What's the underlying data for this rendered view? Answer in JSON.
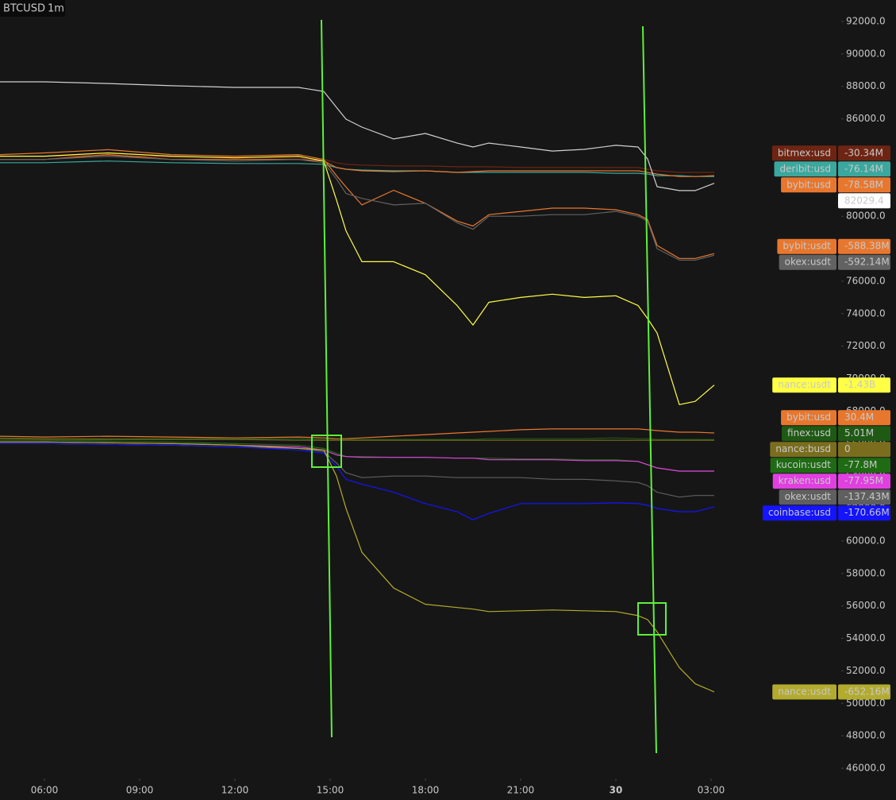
{
  "chart_data": {
    "type": "line",
    "title": "BTCUSD",
    "interval": "1m",
    "background": "#161616",
    "x": [
      4.6,
      6,
      8,
      10,
      12,
      14,
      14.8,
      15.2,
      15.5,
      16,
      17,
      18,
      19,
      19.5,
      20,
      21,
      22,
      23,
      24,
      24.7,
      25,
      25.3,
      26,
      26.5,
      27.1
    ],
    "xlim": [
      4.6,
      31.1
    ],
    "xticks": [
      {
        "value": 6,
        "label": "06:00"
      },
      {
        "value": 9,
        "label": "09:00"
      },
      {
        "value": 12,
        "label": "12:00"
      },
      {
        "value": 15,
        "label": "15:00"
      },
      {
        "value": 18,
        "label": "18:00"
      },
      {
        "value": 21,
        "label": "21:00"
      },
      {
        "value": 24,
        "label": "30",
        "bold": true
      },
      {
        "value": 27,
        "label": "03:00"
      }
    ],
    "ylim": [
      46000,
      92000
    ],
    "yticks": [
      {
        "value": 46000,
        "label": "46000.0"
      },
      {
        "value": 48000,
        "label": "48000.0"
      },
      {
        "value": 50000,
        "label": "50000.0"
      },
      {
        "value": 52000,
        "label": "52000.0"
      },
      {
        "value": 54000,
        "label": "54000.0"
      },
      {
        "value": 56000,
        "label": "56000.0"
      },
      {
        "value": 58000,
        "label": "58000.0"
      },
      {
        "value": 60000,
        "label": "60000.0"
      },
      {
        "value": 62000,
        "label": "62000.0"
      },
      {
        "value": 64000,
        "label": "64000.0"
      },
      {
        "value": 66000,
        "label": "66000.0"
      },
      {
        "value": 68000,
        "label": "68000.0"
      },
      {
        "value": 70000,
        "label": "70000.0"
      },
      {
        "value": 72000,
        "label": "72000.0"
      },
      {
        "value": 74000,
        "label": "74000.0"
      },
      {
        "value": 76000,
        "label": "76000.0"
      },
      {
        "value": 78000,
        "label": "78000.0"
      },
      {
        "value": 80000,
        "label": "80000.0"
      },
      {
        "value": 82000,
        "label": "82000.0"
      },
      {
        "value": 84000,
        "label": "84000.0"
      },
      {
        "value": 86000,
        "label": "86000.0"
      },
      {
        "value": 88000,
        "label": "88000.0"
      },
      {
        "value": 90000,
        "label": "90000.0"
      },
      {
        "value": 92000,
        "label": "92000.0"
      }
    ],
    "grid": false,
    "series": [
      {
        "name": "bitmex:usd",
        "badge": "-30.34M",
        "color": "#6e2412",
        "values": [
          83700,
          83700,
          83750,
          83650,
          83650,
          83600,
          83500,
          83300,
          83200,
          83150,
          83100,
          83100,
          83050,
          83050,
          83050,
          83000,
          83000,
          83000,
          83000,
          83000,
          82900,
          82800,
          82700,
          82700,
          82700
        ]
      },
      {
        "name": "deribit:usd",
        "badge": "-76.14M",
        "color": "#3aa89e",
        "values": [
          83300,
          83300,
          83400,
          83300,
          83250,
          83250,
          83200,
          83000,
          82900,
          82850,
          82800,
          82800,
          82700,
          82700,
          82700,
          82700,
          82700,
          82700,
          82650,
          82650,
          82600,
          82500,
          82500,
          82450,
          82450
        ]
      },
      {
        "name": "bybit:usd",
        "badge": "-78.58M",
        "color": "#e8772e",
        "values": [
          83500,
          83500,
          83800,
          83500,
          83500,
          83500,
          83400,
          83000,
          82900,
          82800,
          82750,
          82800,
          82700,
          82750,
          82800,
          82800,
          82800,
          82800,
          82800,
          82800,
          82700,
          82600,
          82450,
          82450,
          82500
        ]
      },
      {
        "color": "#d0d0d0",
        "values": [
          88280,
          88280,
          88180,
          88040,
          87940,
          87940,
          87690,
          86710,
          85980,
          85490,
          84760,
          85100,
          84510,
          84270,
          84510,
          84270,
          84020,
          84120,
          84370,
          84270,
          83530,
          81820,
          81580,
          81580,
          82029.4
        ]
      },
      {
        "name": "bybit:usdt",
        "badge": "-588.38M",
        "color": "#e8772e",
        "values": [
          83800,
          83900,
          84100,
          83800,
          83700,
          83800,
          83500,
          82500,
          81800,
          80700,
          81600,
          80800,
          79700,
          79400,
          80100,
          80300,
          80500,
          80500,
          80400,
          80100,
          79800,
          78200,
          77400,
          77400,
          77700
        ]
      },
      {
        "name": "okex:usdt",
        "badge": "-592.14M",
        "color": "#626262",
        "values": [
          83500,
          83500,
          83700,
          83500,
          83400,
          83500,
          83300,
          82300,
          81400,
          81100,
          80700,
          80800,
          79600,
          79200,
          80000,
          80000,
          80100,
          80100,
          80300,
          80000,
          79700,
          78000,
          77300,
          77300,
          77600
        ]
      },
      {
        "name": "nance:usdt",
        "badge": "-1.43B",
        "color": "#ffff45",
        "values": [
          83700,
          83700,
          83900,
          83700,
          83600,
          83700,
          83400,
          81000,
          79100,
          77200,
          77200,
          76400,
          74500,
          73300,
          74700,
          75000,
          75200,
          75000,
          75100,
          74500,
          73700,
          72800,
          68400,
          68600,
          69600
        ]
      },
      {
        "name": "bybit:usd",
        "badge": "30.4M",
        "color": "#e8772e",
        "values": [
          66450,
          66400,
          66450,
          66400,
          66350,
          66400,
          66350,
          66300,
          66300,
          66350,
          66450,
          66550,
          66650,
          66700,
          66750,
          66850,
          66900,
          66900,
          66900,
          66900,
          66850,
          66800,
          66700,
          66700,
          66650
        ]
      },
      {
        "name": "finex:usd",
        "badge": "5.01M",
        "color": "#1e5a14",
        "values": [
          66350,
          66300,
          66300,
          66300,
          66300,
          66300,
          66250,
          66250,
          66250,
          66250,
          66250,
          66250,
          66250,
          66250,
          66300,
          66300,
          66300,
          66300,
          66350,
          66300,
          66300,
          66250,
          66250,
          66250,
          66250
        ]
      },
      {
        "name": "nance:busd",
        "badge": "0",
        "color": "#7a6e1e",
        "values": [
          66300,
          66280,
          66250,
          66250,
          66250,
          66200,
          66200,
          66200,
          66200,
          66200,
          66200,
          66200,
          66200,
          66200,
          66200,
          66200,
          66200,
          66200,
          66200,
          66200,
          66200,
          66200,
          66200,
          66200,
          66200
        ]
      },
      {
        "name": "kucoin:usdt",
        "badge": "-77.8M",
        "color": "#1e6b14",
        "values": [
          66200,
          66200,
          66150,
          66100,
          66000,
          65900,
          65700,
          65400,
          65200,
          65200,
          65150,
          65150,
          65100,
          65100,
          65100,
          65050,
          65050,
          65000,
          65000,
          64900,
          64700,
          64500,
          64300,
          64300,
          64300
        ]
      },
      {
        "name": "kraken:usd",
        "badge": "-77.95M",
        "color": "#e040e0",
        "values": [
          66100,
          66100,
          66050,
          66000,
          65900,
          65800,
          65600,
          65300,
          65200,
          65150,
          65150,
          65150,
          65100,
          65100,
          65000,
          65000,
          65000,
          64950,
          64950,
          64900,
          64700,
          64500,
          64300,
          64300,
          64300
        ]
      },
      {
        "name": "okex:usdt",
        "badge": "-137.43M",
        "color": "#5f5f5f",
        "values": [
          66000,
          66000,
          65950,
          65900,
          65800,
          65700,
          65500,
          64800,
          64200,
          63900,
          64000,
          64000,
          63900,
          63900,
          63900,
          63900,
          63800,
          63800,
          63700,
          63600,
          63400,
          63000,
          62700,
          62800,
          62800
        ]
      },
      {
        "name": "coinbase:usd",
        "badge": "-170.66M",
        "color": "#1414ff",
        "values": [
          66000,
          66000,
          65950,
          65900,
          65800,
          65600,
          65400,
          64600,
          63800,
          63500,
          63000,
          62300,
          61800,
          61300,
          61700,
          62300,
          62300,
          62300,
          62350,
          62300,
          62200,
          62000,
          61800,
          61800,
          62100
        ]
      },
      {
        "name": "nance:usdt",
        "badge": "-652.16M",
        "color": "#b3ab2e",
        "values": [
          66100,
          66100,
          66050,
          66000,
          65900,
          65700,
          65600,
          64000,
          62000,
          59300,
          57100,
          56100,
          55900,
          55800,
          55650,
          55700,
          55750,
          55700,
          55650,
          55400,
          55150,
          54400,
          52200,
          51200,
          50700
        ]
      }
    ]
  }
}
